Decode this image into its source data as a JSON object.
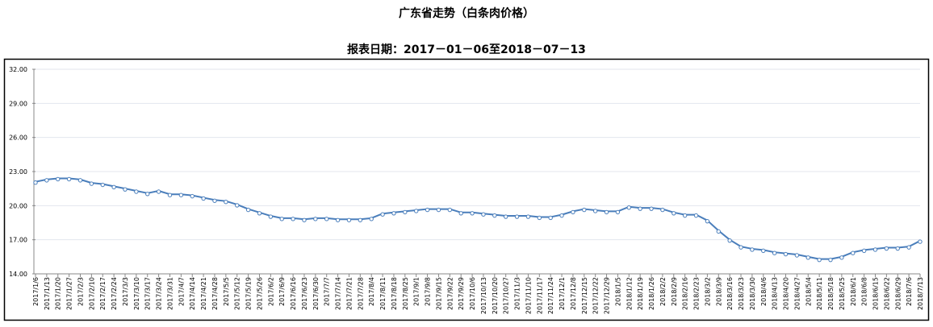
{
  "chart_data": {
    "type": "line",
    "title": "广东省走势（白条肉价格）",
    "subtitle": "报表日期：2017－01－06至2018－07－13",
    "xlabel": "",
    "ylabel": "",
    "ylim": [
      14,
      32
    ],
    "yticks": [
      "14.00",
      "17.00",
      "20.00",
      "23.00",
      "26.00",
      "29.00",
      "32.00"
    ],
    "grid": true,
    "legend": "none",
    "series_color": "#4a7ebb",
    "categories": [
      "2017/1/6",
      "2017/1/13",
      "2017/1/20",
      "2017/1/27",
      "2017/2/3",
      "2017/2/10",
      "2017/2/17",
      "2017/2/24",
      "2017/3/3",
      "2017/3/10",
      "2017/3/17",
      "2017/3/24",
      "2017/3/31",
      "2017/4/7",
      "2017/4/14",
      "2017/4/21",
      "2017/4/28",
      "2017/5/5",
      "2017/5/12",
      "2017/5/19",
      "2017/5/26",
      "2017/6/2",
      "2017/6/9",
      "2017/6/16",
      "2017/6/23",
      "2017/6/30",
      "2017/7/7",
      "2017/7/14",
      "2017/7/21",
      "2017/7/28",
      "2017/8/4",
      "2017/8/11",
      "2017/8/18",
      "2017/8/25",
      "2017/9/1",
      "2017/9/8",
      "2017/9/15",
      "2017/9/22",
      "2017/9/29",
      "2017/10/6",
      "2017/10/13",
      "2017/10/20",
      "2017/10/27",
      "2017/11/3",
      "2017/11/10",
      "2017/11/17",
      "2017/11/24",
      "2017/12/1",
      "2017/12/8",
      "2017/12/15",
      "2017/12/22",
      "2017/12/29",
      "2018/1/5",
      "2018/1/12",
      "2018/1/19",
      "2018/1/26",
      "2018/2/2",
      "2018/2/9",
      "2018/2/16",
      "2018/2/23",
      "2018/3/2",
      "2018/3/9",
      "2018/3/16",
      "2018/3/23",
      "2018/3/30",
      "2018/4/6",
      "2018/4/13",
      "2018/4/20",
      "2018/4/27",
      "2018/5/4",
      "2018/5/11",
      "2018/5/18",
      "2018/5/25",
      "2018/6/1",
      "2018/6/8",
      "2018/6/15",
      "2018/6/22",
      "2018/6/29",
      "2018/7/6",
      "2018/7/13"
    ],
    "values": [
      22.1,
      22.3,
      22.4,
      22.4,
      22.3,
      22.0,
      21.9,
      21.7,
      21.5,
      21.3,
      21.1,
      21.3,
      21.0,
      21.0,
      20.9,
      20.7,
      20.5,
      20.4,
      20.1,
      19.7,
      19.4,
      19.1,
      18.9,
      18.9,
      18.8,
      18.9,
      18.9,
      18.8,
      18.8,
      18.8,
      18.9,
      19.3,
      19.4,
      19.5,
      19.6,
      19.7,
      19.7,
      19.7,
      19.4,
      19.4,
      19.3,
      19.2,
      19.1,
      19.1,
      19.1,
      19.0,
      19.0,
      19.2,
      19.5,
      19.7,
      19.6,
      19.5,
      19.5,
      19.9,
      19.8,
      19.8,
      19.7,
      19.4,
      19.2,
      19.2,
      18.7,
      17.8,
      17.0,
      16.4,
      16.2,
      16.1,
      15.9,
      15.8,
      15.7,
      15.5,
      15.3,
      15.3,
      15.5,
      15.9,
      16.1,
      16.2,
      16.3,
      16.3,
      16.4,
      16.9
    ]
  }
}
